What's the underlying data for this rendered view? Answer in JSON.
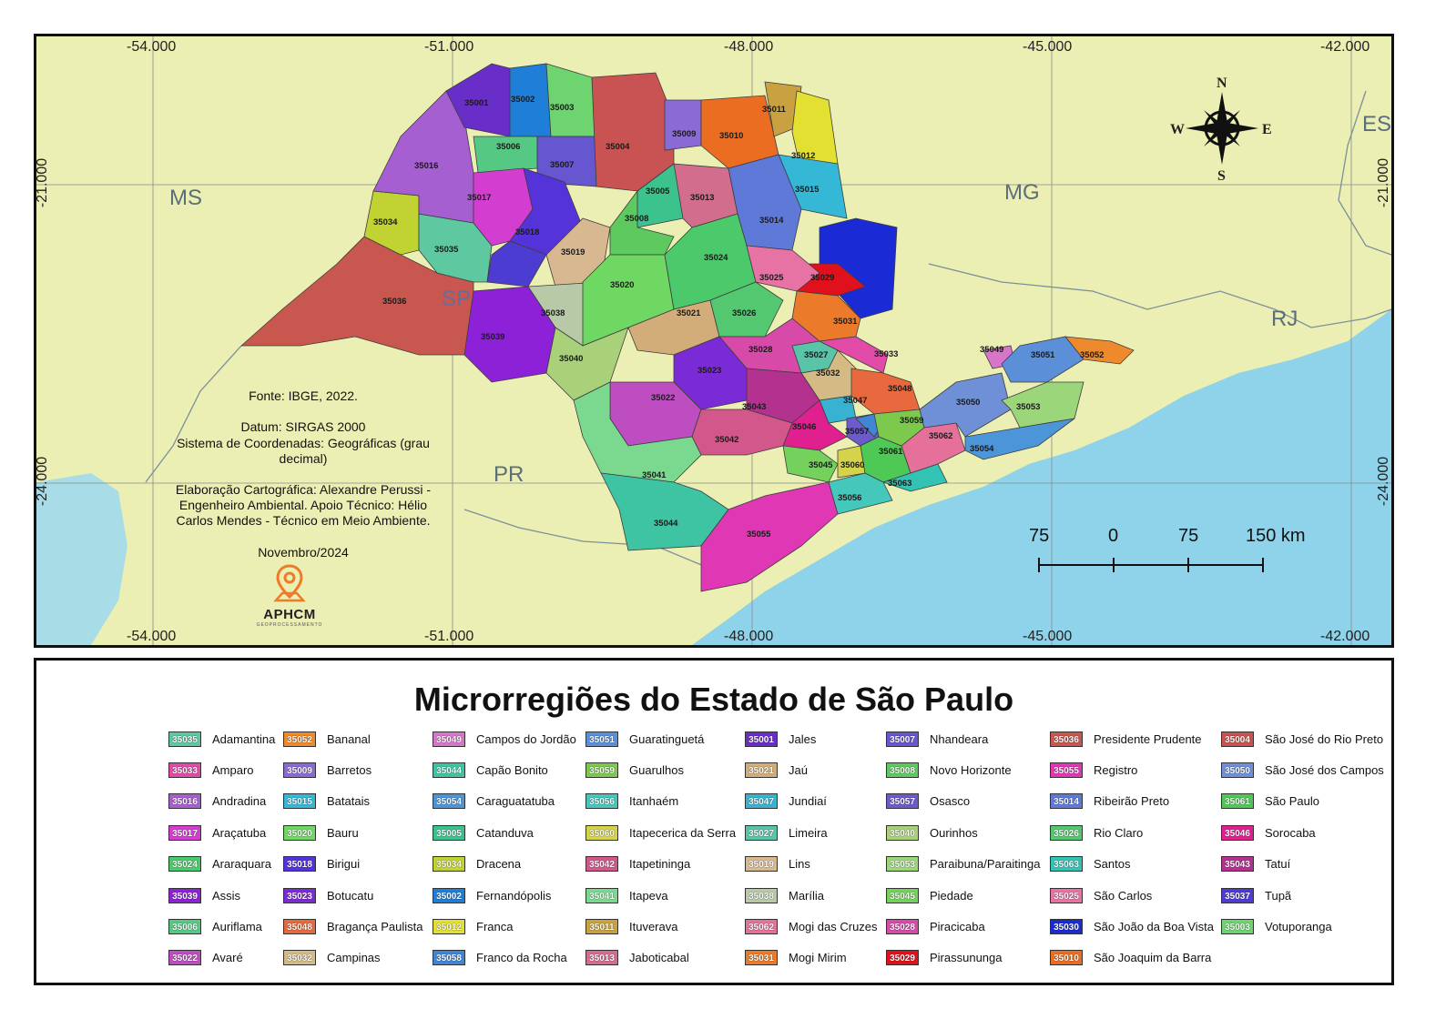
{
  "map": {
    "coords_top": [
      "-54.000",
      "-51.000",
      "-48.000",
      "-45.000",
      "-42.000"
    ],
    "coords_bottom": [
      "-54.000",
      "-51.000",
      "-48.000",
      "-45.000",
      "-42.000"
    ],
    "coords_left": [
      "-21.000",
      "-24.000"
    ],
    "coords_right": [
      "-21.000",
      "-24.000"
    ],
    "states": {
      "ms": "MS",
      "mg": "MG",
      "es": "ES",
      "rj": "RJ",
      "pr": "PR",
      "sp": "SP"
    },
    "compass": {
      "n": "N",
      "s": "S",
      "e": "E",
      "w": "W"
    },
    "info": {
      "source": "Fonte: IBGE, 2022.",
      "datum": "Datum: SIRGAS 2000",
      "coords_system": "Sistema de Coordenadas: Geográficas (grau decimal)",
      "credits": "Elaboração Cartográfica: Alexandre Perussi - Engenheiro Ambiental. Apoio Técnico: Hélio Carlos Mendes - Técnico em Meio Ambiente.",
      "date": "Novembro/2024"
    },
    "logo": {
      "name": "APHCM",
      "sub": "GEOPROCESSAMENTO"
    },
    "scale": {
      "labels": [
        "75",
        "0",
        "75",
        "150 km"
      ]
    },
    "colors": {
      "land": "#ecefb3",
      "sea": "#8ed3ea",
      "state_red": "#ec0d18"
    }
  },
  "legend": {
    "title": "Microrregiões do Estado de São Paulo",
    "columns": [
      [
        {
          "code": "35035",
          "name": "Adamantina",
          "color": "#5ec9a0"
        },
        {
          "code": "35033",
          "name": "Amparo",
          "color": "#e14aa6"
        },
        {
          "code": "35016",
          "name": "Andradina",
          "color": "#a65fd0"
        },
        {
          "code": "35017",
          "name": "Araçatuba",
          "color": "#d43ed0"
        },
        {
          "code": "35024",
          "name": "Araraquara",
          "color": "#4bc96b"
        },
        {
          "code": "35039",
          "name": "Assis",
          "color": "#8c21d8"
        },
        {
          "code": "35006",
          "name": "Auriflama",
          "color": "#55c984"
        },
        {
          "code": "35022",
          "name": "Avaré",
          "color": "#bd4dc1"
        }
      ],
      [
        {
          "code": "35052",
          "name": "Bananal",
          "color": "#ef8a2c"
        },
        {
          "code": "35009",
          "name": "Barretos",
          "color": "#8a6bd6"
        },
        {
          "code": "35015",
          "name": "Batatais",
          "color": "#35b8d6"
        },
        {
          "code": "35020",
          "name": "Bauru",
          "color": "#6fd862"
        },
        {
          "code": "35018",
          "name": "Birigui",
          "color": "#5433d9"
        },
        {
          "code": "35023",
          "name": "Botucatu",
          "color": "#7b2bd6"
        },
        {
          "code": "35048",
          "name": "Bragança Paulista",
          "color": "#e8693d"
        },
        {
          "code": "35032",
          "name": "Campinas",
          "color": "#d4bb86"
        }
      ],
      [
        {
          "code": "35049",
          "name": "Campos do Jordão",
          "color": "#d776c9"
        },
        {
          "code": "35044",
          "name": "Capão Bonito",
          "color": "#3ec4a2"
        },
        {
          "code": "35054",
          "name": "Caraguatatuba",
          "color": "#4c95d8"
        },
        {
          "code": "35005",
          "name": "Catanduva",
          "color": "#3cc28c"
        },
        {
          "code": "35034",
          "name": "Dracena",
          "color": "#c0d332"
        },
        {
          "code": "35002",
          "name": "Fernandópolis",
          "color": "#1f7fd8"
        },
        {
          "code": "35012",
          "name": "Franca",
          "color": "#e3e032"
        },
        {
          "code": "35058",
          "name": "Franco da Rocha",
          "color": "#3f86d6"
        }
      ],
      [
        {
          "code": "35051",
          "name": "Guaratinguetá",
          "color": "#5b8fd8"
        },
        {
          "code": "35059",
          "name": "Guarulhos",
          "color": "#7cc94d"
        },
        {
          "code": "35056",
          "name": "Itanhaém",
          "color": "#45c7bb"
        },
        {
          "code": "35060",
          "name": "Itapecerica da Serra",
          "color": "#d4d34a"
        },
        {
          "code": "35042",
          "name": "Itapetininga",
          "color": "#d2578a"
        },
        {
          "code": "35041",
          "name": "Itapeva",
          "color": "#7ad98f"
        },
        {
          "code": "35011",
          "name": "Ituverava",
          "color": "#c9a140"
        },
        {
          "code": "35013",
          "name": "Jaboticabal",
          "color": "#d36d8e"
        }
      ],
      [
        {
          "code": "35001",
          "name": "Jales",
          "color": "#6a2ec8"
        },
        {
          "code": "35021",
          "name": "Jaú",
          "color": "#d2ad7a"
        },
        {
          "code": "35047",
          "name": "Jundiaí",
          "color": "#37b2d0"
        },
        {
          "code": "35027",
          "name": "Limeira",
          "color": "#58c4a8"
        },
        {
          "code": "35019",
          "name": "Lins",
          "color": "#d8b890"
        },
        {
          "code": "35038",
          "name": "Marília",
          "color": "#b8c9a8"
        },
        {
          "code": "35062",
          "name": "Mogi das Cruzes",
          "color": "#e5719a"
        },
        {
          "code": "35031",
          "name": "Mogi Mirim",
          "color": "#eb7b2a"
        }
      ],
      [
        {
          "code": "35007",
          "name": "Nhandeara",
          "color": "#6656cf"
        },
        {
          "code": "35008",
          "name": "Novo Horizonte",
          "color": "#5ec95e"
        },
        {
          "code": "35057",
          "name": "Osasco",
          "color": "#6b5bcc"
        },
        {
          "code": "35040",
          "name": "Ourinhos",
          "color": "#a9d17a"
        },
        {
          "code": "35053",
          "name": "Paraibuna/Paraitinga",
          "color": "#9bd67b"
        },
        {
          "code": "35045",
          "name": "Piedade",
          "color": "#74d15b"
        },
        {
          "code": "35028",
          "name": "Piracicaba",
          "color": "#d84aa8"
        },
        {
          "code": "35029",
          "name": "Pirassununga",
          "color": "#e0101c"
        }
      ],
      [
        {
          "code": "35036",
          "name": "Presidente Prudente",
          "color": "#c8574f"
        },
        {
          "code": "35055",
          "name": "Registro",
          "color": "#e038b4"
        },
        {
          "code": "35014",
          "name": "Ribeirão Preto",
          "color": "#5f79d8"
        },
        {
          "code": "35026",
          "name": "Rio Claro",
          "color": "#53c870"
        },
        {
          "code": "35063",
          "name": "Santos",
          "color": "#32c3b5"
        },
        {
          "code": "35025",
          "name": "São Carlos",
          "color": "#e673a3"
        },
        {
          "code": "35030",
          "name": "São João da Boa Vista",
          "color": "#1a2bd6"
        },
        {
          "code": "35010",
          "name": "São Joaquim da Barra",
          "color": "#ea6d22"
        }
      ],
      [
        {
          "code": "35004",
          "name": "São José do Rio Preto",
          "color": "#c95352"
        },
        {
          "code": "35050",
          "name": "São José dos Campos",
          "color": "#6f8fd6"
        },
        {
          "code": "35061",
          "name": "São Paulo",
          "color": "#4fc955"
        },
        {
          "code": "35046",
          "name": "Sorocaba",
          "color": "#e1208f"
        },
        {
          "code": "35043",
          "name": "Tatuí",
          "color": "#b3318f"
        },
        {
          "code": "35037",
          "name": "Tupã",
          "color": "#4c3cd1"
        },
        {
          "code": "35003",
          "name": "Votuporanga",
          "color": "#6ed46f"
        }
      ]
    ]
  }
}
